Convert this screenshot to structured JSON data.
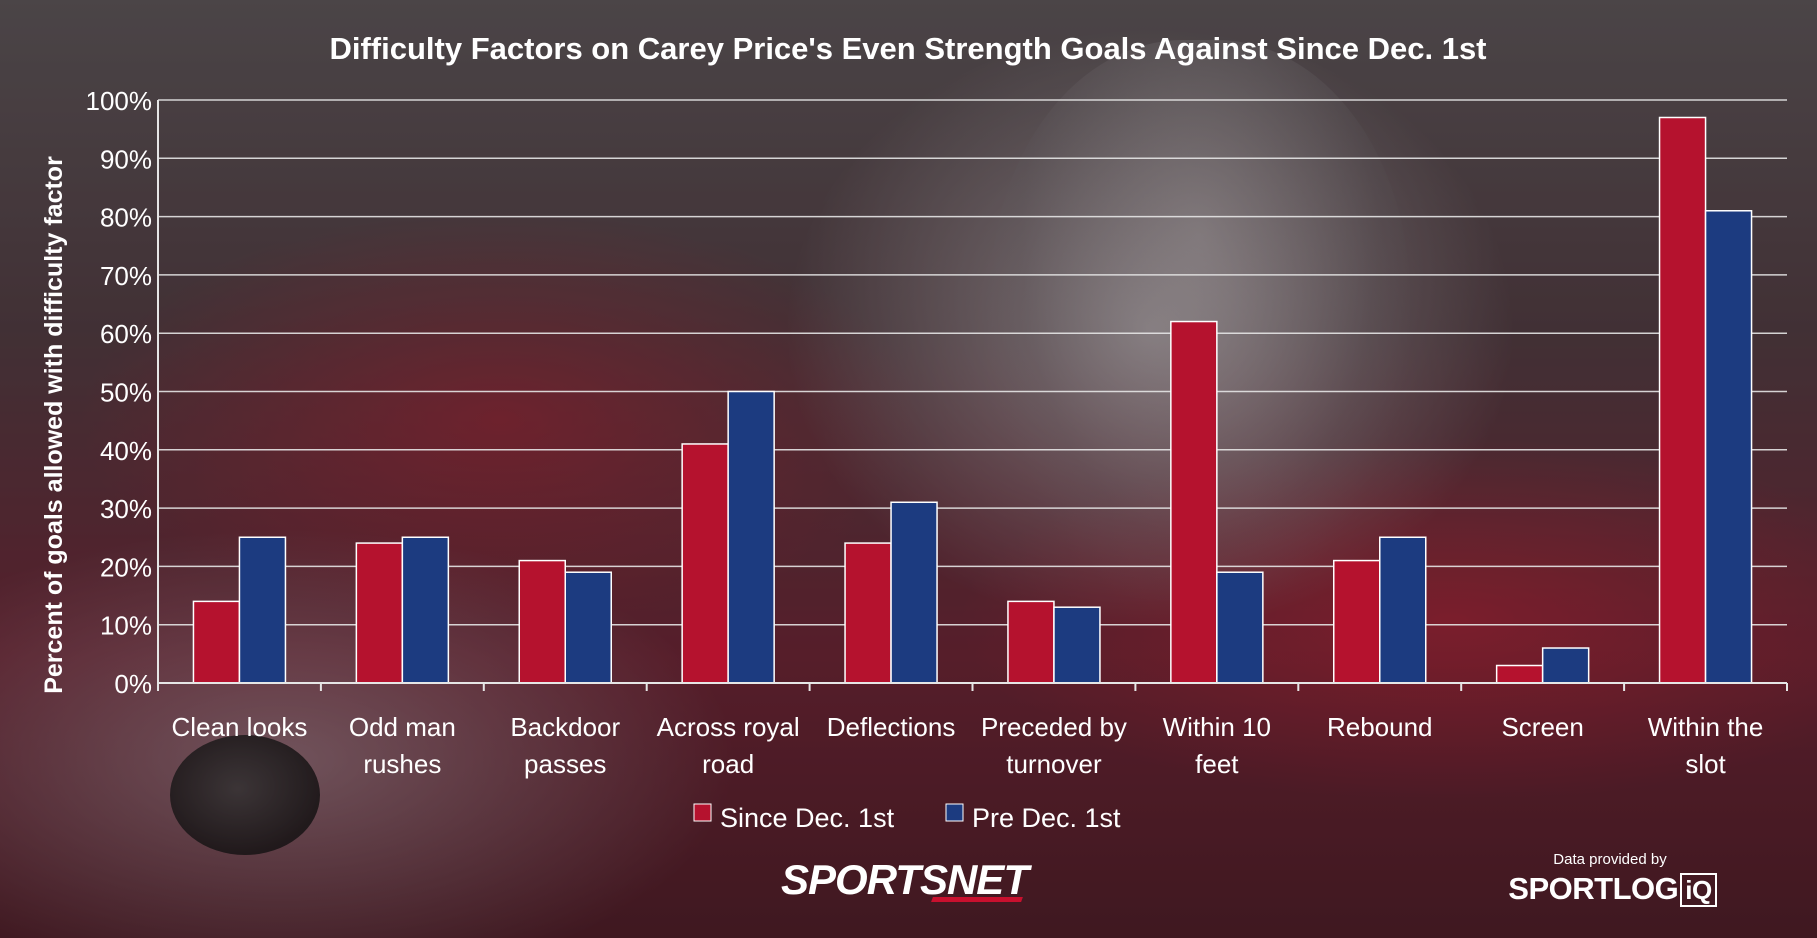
{
  "chart_data": {
    "type": "bar",
    "title": "Difficulty Factors on Carey Price's Even Strength Goals Against Since Dec. 1st",
    "ylabel": "Percent of goals allowed with difficulty factor",
    "xlabel": "",
    "ylim": [
      0,
      100
    ],
    "y_ticks": [
      "0%",
      "10%",
      "20%",
      "30%",
      "40%",
      "50%",
      "60%",
      "70%",
      "80%",
      "90%",
      "100%"
    ],
    "grid": true,
    "legend_position": "bottom",
    "categories": [
      "Clean looks",
      "Odd man rushes",
      "Backdoor passes",
      "Across royal road",
      "Deflections",
      "Preceded by turnover",
      "Within 10 feet",
      "Rebound",
      "Screen",
      "Within the slot"
    ],
    "category_lines": [
      [
        "Clean looks"
      ],
      [
        "Odd man",
        "rushes"
      ],
      [
        "Backdoor",
        "passes"
      ],
      [
        "Across royal",
        "road"
      ],
      [
        "Deflections"
      ],
      [
        "Preceded by",
        "turnover"
      ],
      [
        "Within 10",
        "feet"
      ],
      [
        "Rebound"
      ],
      [
        "Screen"
      ],
      [
        "Within the",
        "slot"
      ]
    ],
    "series": [
      {
        "name": "Since Dec. 1st",
        "color": "#b5122e",
        "values": [
          14,
          24,
          21,
          41,
          24,
          14,
          62,
          21,
          3,
          97
        ]
      },
      {
        "name": "Pre Dec. 1st",
        "color": "#1c3b80",
        "values": [
          25,
          25,
          19,
          50,
          31,
          13,
          19,
          25,
          6,
          81
        ]
      }
    ]
  },
  "branding": {
    "broadcaster": "SPORTSNET",
    "provided_by": "Data provided by",
    "data_partner": "SPORTLOG",
    "data_partner_suffix": "iQ"
  }
}
